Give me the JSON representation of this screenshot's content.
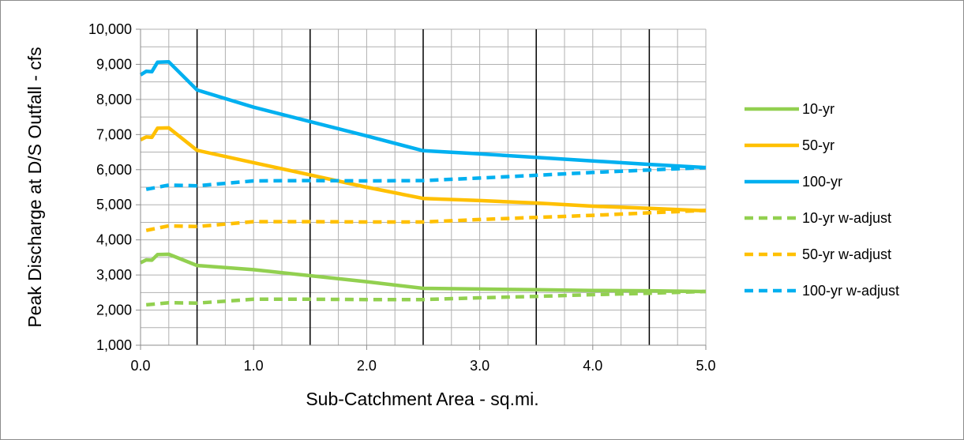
{
  "chart_data": {
    "type": "line",
    "title": "",
    "xlabel": "Sub-Catchment Area - sq.mi.",
    "ylabel": "Peak Discharge at D/S Outfall - cfs",
    "xlim": [
      0,
      5
    ],
    "ylim": [
      1000,
      10000
    ],
    "x_ticks": [
      0,
      1,
      2,
      3,
      4,
      5
    ],
    "x_tick_labels": [
      "0.0",
      "1.0",
      "2.0",
      "3.0",
      "4.0",
      "5.0"
    ],
    "y_ticks": [
      1000,
      2000,
      3000,
      4000,
      5000,
      6000,
      7000,
      8000,
      9000,
      10000
    ],
    "y_tick_labels": [
      "1,000",
      "2,000",
      "3,000",
      "4,000",
      "5,000",
      "6,000",
      "7,000",
      "8,000",
      "9,000",
      "10,000"
    ],
    "minor_y_step": 500,
    "minor_x_step": 0.25,
    "major_x_vlines": [
      0.5,
      1.5,
      2.5,
      3.5,
      4.5
    ],
    "grid": true,
    "legend_position": "right",
    "series": [
      {
        "name": "10-yr",
        "color": "#92d050",
        "style": "solid",
        "x": [
          0,
          0.05,
          0.1,
          0.15,
          0.25,
          0.5,
          1.0,
          1.5,
          2.0,
          2.5,
          3.0,
          3.5,
          4.0,
          4.5,
          5.0
        ],
        "y": [
          3350,
          3430,
          3420,
          3580,
          3590,
          3270,
          3150,
          2980,
          2810,
          2620,
          2600,
          2580,
          2560,
          2550,
          2530
        ]
      },
      {
        "name": "50-yr",
        "color": "#ffc000",
        "style": "solid",
        "x": [
          0,
          0.05,
          0.1,
          0.15,
          0.25,
          0.5,
          1.0,
          1.5,
          2.0,
          2.5,
          3.0,
          3.5,
          4.0,
          4.5,
          5.0
        ],
        "y": [
          6850,
          6930,
          6920,
          7180,
          7190,
          6550,
          6200,
          5850,
          5500,
          5180,
          5120,
          5050,
          4960,
          4900,
          4830
        ]
      },
      {
        "name": "100-yr",
        "color": "#00b0f0",
        "style": "solid",
        "x": [
          0,
          0.05,
          0.1,
          0.15,
          0.25,
          0.5,
          1.0,
          1.5,
          2.0,
          2.5,
          3.0,
          3.5,
          4.0,
          4.5,
          5.0
        ],
        "y": [
          8700,
          8800,
          8790,
          9060,
          9070,
          8270,
          7780,
          7370,
          6960,
          6540,
          6450,
          6350,
          6250,
          6150,
          6060
        ]
      },
      {
        "name": "10-yr w-adjust",
        "color": "#92d050",
        "style": "dashed",
        "x": [
          0.05,
          0.25,
          0.5,
          1.0,
          1.5,
          2.0,
          2.5,
          3.0,
          3.5,
          4.0,
          4.5,
          5.0
        ],
        "y": [
          2150,
          2210,
          2200,
          2310,
          2310,
          2300,
          2300,
          2350,
          2390,
          2440,
          2480,
          2530
        ]
      },
      {
        "name": "50-yr w-adjust",
        "color": "#ffc000",
        "style": "dashed",
        "x": [
          0.05,
          0.25,
          0.5,
          1.0,
          1.5,
          2.0,
          2.5,
          3.0,
          3.5,
          4.0,
          4.5,
          5.0
        ],
        "y": [
          4270,
          4400,
          4380,
          4520,
          4520,
          4510,
          4510,
          4580,
          4640,
          4700,
          4770,
          4840
        ]
      },
      {
        "name": "100-yr w-adjust",
        "color": "#00b0f0",
        "style": "dashed",
        "x": [
          0.05,
          0.25,
          0.5,
          1.0,
          1.5,
          2.0,
          2.5,
          3.0,
          3.5,
          4.0,
          4.5,
          5.0
        ],
        "y": [
          5440,
          5560,
          5540,
          5680,
          5690,
          5680,
          5690,
          5760,
          5840,
          5920,
          5990,
          6060
        ]
      }
    ]
  }
}
